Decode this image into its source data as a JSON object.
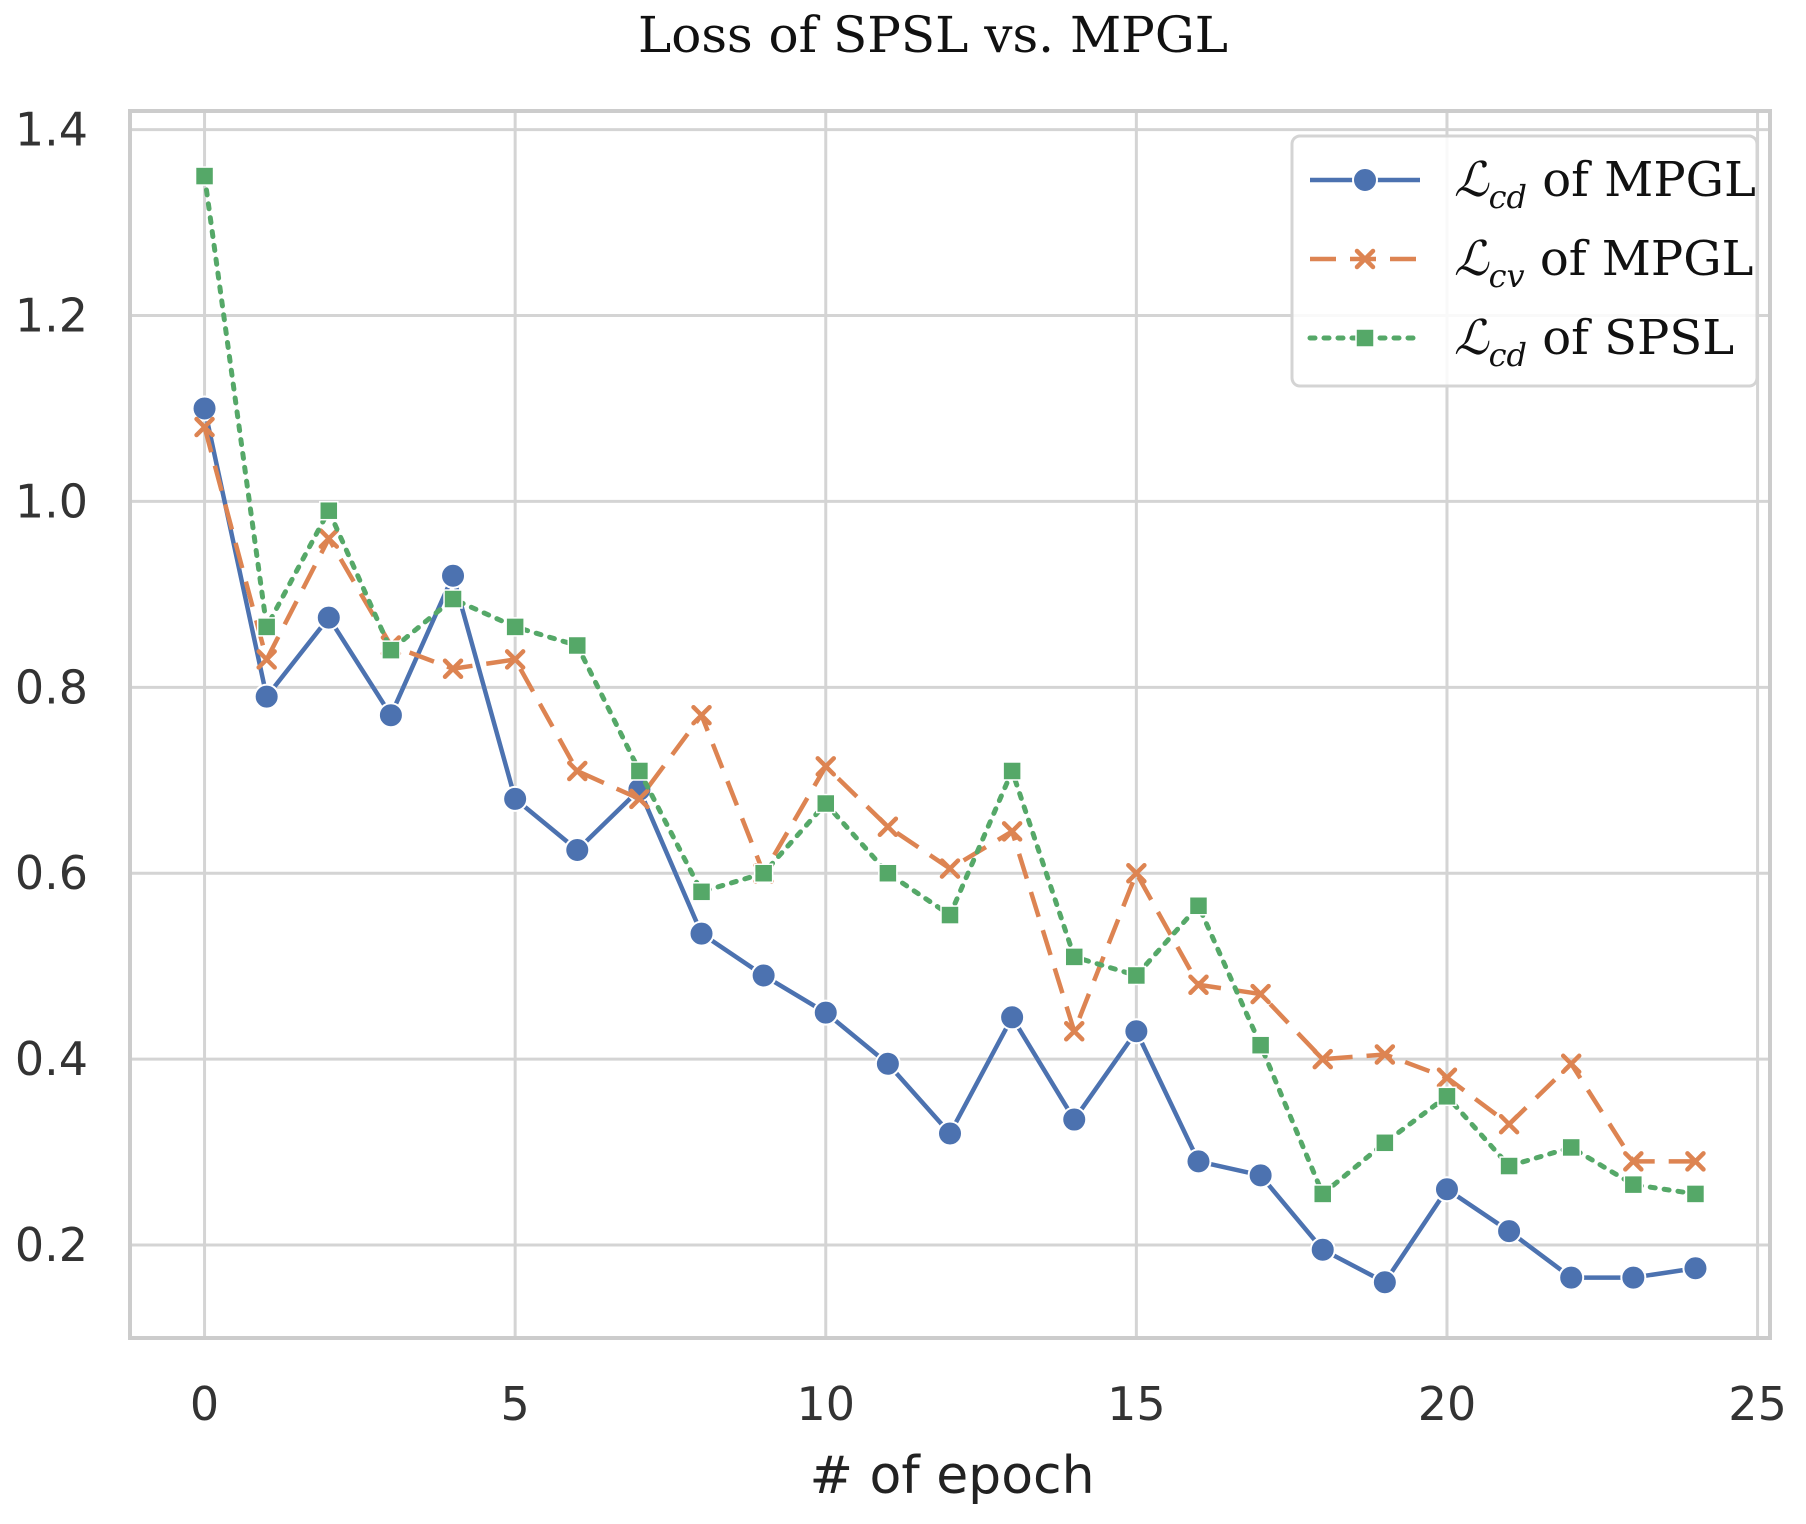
{
  "chart_data": {
    "type": "line",
    "title": "Loss of SPSL vs. MPGL",
    "xlabel": "# of epoch",
    "ylabel": "",
    "xlim": [
      -1.2,
      25.2
    ],
    "ylim": [
      0.1,
      1.42
    ],
    "xticks": [
      0,
      5,
      10,
      15,
      20,
      25
    ],
    "yticks": [
      0.2,
      0.4,
      0.6,
      0.8,
      1.0,
      1.2,
      1.4
    ],
    "xtick_labels": [
      "0",
      "5",
      "10",
      "15",
      "20",
      "25"
    ],
    "ytick_labels": [
      "0.2",
      "0.4",
      "0.6",
      "0.8",
      "1.0",
      "1.2",
      "1.4"
    ],
    "grid": true,
    "legend_position": "top-right",
    "x": [
      0,
      1,
      2,
      3,
      4,
      5,
      6,
      7,
      8,
      9,
      10,
      11,
      12,
      13,
      14,
      15,
      16,
      17,
      18,
      19,
      20,
      21,
      22,
      23,
      24
    ],
    "series": [
      {
        "name": "ℒcd of MPGL",
        "legend_symbol": "ℒ",
        "legend_sub": "cd",
        "legend_text": " of MPGL",
        "color": "#4c72b0",
        "style": "solid",
        "marker": "circle",
        "values": [
          1.1,
          0.79,
          0.875,
          0.77,
          0.92,
          0.68,
          0.625,
          0.69,
          0.535,
          0.49,
          0.45,
          0.395,
          0.32,
          0.445,
          0.335,
          0.43,
          0.29,
          0.275,
          0.195,
          0.16,
          0.26,
          0.215,
          0.165,
          0.165,
          0.175
        ]
      },
      {
        "name": "ℒcv of MPGL",
        "legend_symbol": "ℒ",
        "legend_sub": "cv",
        "legend_text": " of MPGL",
        "color": "#dd8452",
        "style": "dashed",
        "marker": "x",
        "values": [
          1.08,
          0.83,
          0.96,
          0.845,
          0.82,
          0.83,
          0.71,
          0.68,
          0.77,
          0.6,
          0.715,
          0.65,
          0.605,
          0.645,
          0.43,
          0.6,
          0.48,
          0.47,
          0.4,
          0.405,
          0.38,
          0.33,
          0.395,
          0.29,
          0.29
        ]
      },
      {
        "name": "ℒcd of SPSL",
        "legend_symbol": "ℒ",
        "legend_sub": "cd",
        "legend_text": " of SPSL",
        "color": "#55a868",
        "style": "dotted",
        "marker": "square",
        "values": [
          1.35,
          0.865,
          0.99,
          0.84,
          0.895,
          0.865,
          0.845,
          0.71,
          0.58,
          0.6,
          0.675,
          0.6,
          0.555,
          0.71,
          0.51,
          0.49,
          0.565,
          0.415,
          0.255,
          0.31,
          0.36,
          0.285,
          0.305,
          0.265,
          0.255
        ]
      }
    ]
  }
}
